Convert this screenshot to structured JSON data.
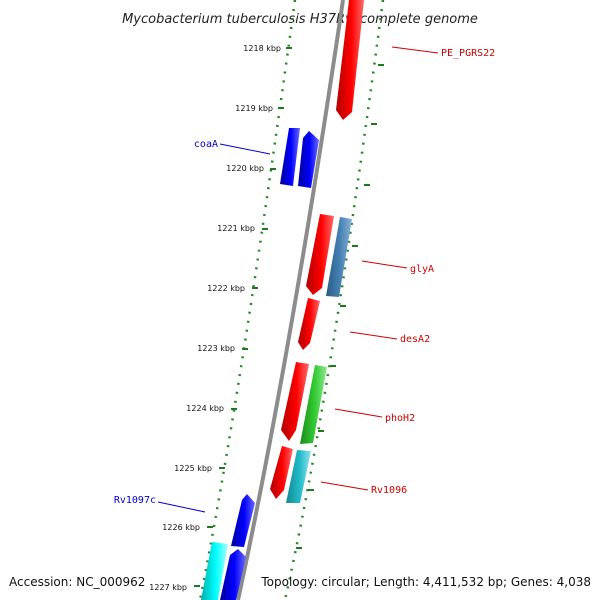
{
  "header": {
    "title": "Mycobacterium tuberculosis H37Rv, complete genome"
  },
  "footer": {
    "accession": "Accession: NC_000962",
    "topology": "Topology: circular; Length: 4,411,532 bp; Genes: 4,038"
  },
  "scale": {
    "unit": "kbp",
    "ticks": [
      "1218 kbp",
      "1219 kbp",
      "1220 kbp",
      "1221 kbp",
      "1222 kbp",
      "1223 kbp",
      "1224 kbp",
      "1225 kbp",
      "1226 kbp",
      "1227 kbp"
    ]
  },
  "gene_labels": [
    {
      "name": "PE_PGRS22",
      "color": "#cc0000"
    },
    {
      "name": "coaA",
      "color": "#0000cc"
    },
    {
      "name": "glyA",
      "color": "#cc0000"
    },
    {
      "name": "desA2",
      "color": "#cc0000"
    },
    {
      "name": "phoH2",
      "color": "#cc0000"
    },
    {
      "name": "Rv1096",
      "color": "#cc0000"
    },
    {
      "name": "Rv1097c",
      "color": "#0000cc"
    }
  ],
  "colors": {
    "forward_gene": "#ff0000",
    "reverse_gene": "#0000ff",
    "steelblue_gene": "#4682b4",
    "green_gene": "#33cc33",
    "teal_gene": "#22bbc8",
    "cyan_gene": "#00ffff",
    "backbone": "#888888",
    "dots": "#228822"
  }
}
